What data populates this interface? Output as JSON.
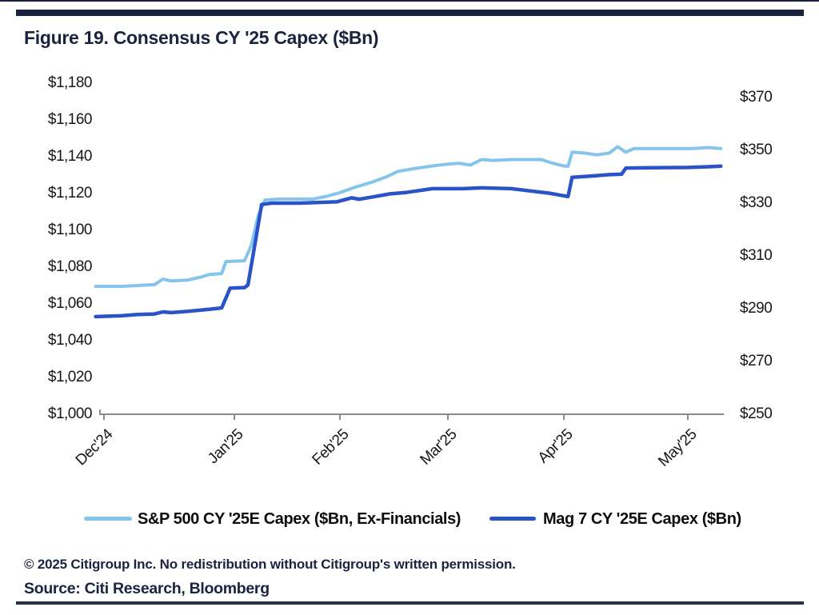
{
  "header": {
    "title": "Figure 19. Consensus CY '25 Capex ($Bn)"
  },
  "footer": {
    "copyright": "© 2025 Citigroup Inc. No redistribution without Citigroup's written permission.",
    "source": "Source: Citi Research, Bloomberg"
  },
  "colors": {
    "navy_accent": "#1b2340",
    "sp500_line": "#85c5ec",
    "mag7_line": "#2b53c8",
    "axis_line": "#8a8a8a"
  },
  "chart_data": {
    "type": "line",
    "title": "Figure 19. Consensus CY '25 Capex ($Bn)",
    "grid": false,
    "legend_position": "bottom",
    "x_axis": {
      "tick_labels": [
        "Dec'24",
        "Jan'25",
        "Feb'25",
        "Mar'25",
        "Apr'25",
        "May'25"
      ],
      "tick_dates": [
        "2024-12-01",
        "2025-01-01",
        "2025-02-01",
        "2025-03-01",
        "2025-04-01",
        "2025-05-01"
      ]
    },
    "left_axis": {
      "range": [
        1000,
        1180
      ],
      "tick_values": [
        1180,
        1160,
        1140,
        1120,
        1100,
        1080,
        1060,
        1040,
        1020,
        1000
      ],
      "tick_labels": [
        "$1,180",
        "$1,160",
        "$1,140",
        "$1,120",
        "$1,100",
        "$1,080",
        "$1,060",
        "$1,040",
        "$1,020",
        "$1,000"
      ]
    },
    "right_axis": {
      "range": [
        250,
        370
      ],
      "tick_values": [
        370,
        350,
        330,
        310,
        290,
        270,
        250
      ],
      "tick_labels": [
        "$370",
        "$350",
        "$330",
        "$310",
        "$290",
        "$270",
        "$250"
      ]
    },
    "series": [
      {
        "name": "S&P 500 CY '25E Capex ($Bn, Ex-Financials)",
        "axis": "left",
        "color": "#85c5ec",
        "points": [
          [
            "2024-11-29",
            1069.5
          ],
          [
            "2024-12-05",
            1069.5
          ],
          [
            "2024-12-09",
            1070
          ],
          [
            "2024-12-13",
            1070.5
          ],
          [
            "2024-12-15",
            1073.5
          ],
          [
            "2024-12-17",
            1072.5
          ],
          [
            "2024-12-21",
            1073
          ],
          [
            "2024-12-24",
            1074.5
          ],
          [
            "2024-12-26",
            1076
          ],
          [
            "2024-12-29",
            1076.5
          ],
          [
            "2024-12-30",
            1083
          ],
          [
            "2025-01-04",
            1083.5
          ],
          [
            "2025-01-06",
            1092
          ],
          [
            "2025-01-08",
            1108
          ],
          [
            "2025-01-10",
            1116.5
          ],
          [
            "2025-01-14",
            1117
          ],
          [
            "2025-01-24",
            1117
          ],
          [
            "2025-01-28",
            1118.5
          ],
          [
            "2025-02-01",
            1120.5
          ],
          [
            "2025-02-05",
            1123.5
          ],
          [
            "2025-02-09",
            1126
          ],
          [
            "2025-02-13",
            1129
          ],
          [
            "2025-02-16",
            1132
          ],
          [
            "2025-02-20",
            1133.5
          ],
          [
            "2025-02-25",
            1135
          ],
          [
            "2025-03-01",
            1136
          ],
          [
            "2025-03-04",
            1136.5
          ],
          [
            "2025-03-07",
            1135.5
          ],
          [
            "2025-03-10",
            1138.5
          ],
          [
            "2025-03-13",
            1138
          ],
          [
            "2025-03-18",
            1138.5
          ],
          [
            "2025-03-26",
            1138.5
          ],
          [
            "2025-03-29",
            1136.5
          ],
          [
            "2025-04-01",
            1135
          ],
          [
            "2025-04-02",
            1134.8
          ],
          [
            "2025-04-03",
            1142.5
          ],
          [
            "2025-04-06",
            1142
          ],
          [
            "2025-04-09",
            1141
          ],
          [
            "2025-04-12",
            1142
          ],
          [
            "2025-04-14",
            1145.5
          ],
          [
            "2025-04-16",
            1142.5
          ],
          [
            "2025-04-18",
            1144.5
          ],
          [
            "2025-04-24",
            1144.5
          ],
          [
            "2025-05-02",
            1144.5
          ],
          [
            "2025-05-06",
            1145
          ],
          [
            "2025-05-09",
            1144.5
          ]
        ]
      },
      {
        "name": "Mag 7 CY '25E Capex ($Bn)",
        "axis": "right",
        "color": "#2b53c8",
        "points": [
          [
            "2024-11-29",
            287
          ],
          [
            "2024-12-05",
            287.3
          ],
          [
            "2024-12-09",
            287.8
          ],
          [
            "2024-12-13",
            288
          ],
          [
            "2024-12-15",
            288.8
          ],
          [
            "2024-12-17",
            288.5
          ],
          [
            "2024-12-21",
            289
          ],
          [
            "2024-12-26",
            289.8
          ],
          [
            "2024-12-29",
            290.3
          ],
          [
            "2024-12-31",
            297.8
          ],
          [
            "2025-01-04",
            298
          ],
          [
            "2025-01-05",
            299
          ],
          [
            "2025-01-07",
            314
          ],
          [
            "2025-01-09",
            329.5
          ],
          [
            "2025-01-12",
            330
          ],
          [
            "2025-01-20",
            330
          ],
          [
            "2025-01-31",
            330.5
          ],
          [
            "2025-02-04",
            332
          ],
          [
            "2025-02-06",
            331.5
          ],
          [
            "2025-02-10",
            332.5
          ],
          [
            "2025-02-14",
            333.5
          ],
          [
            "2025-02-18",
            334
          ],
          [
            "2025-02-25",
            335.5
          ],
          [
            "2025-03-05",
            335.5
          ],
          [
            "2025-03-10",
            335.8
          ],
          [
            "2025-03-18",
            335.5
          ],
          [
            "2025-03-22",
            334.8
          ],
          [
            "2025-03-28",
            333.8
          ],
          [
            "2025-04-01",
            332.8
          ],
          [
            "2025-04-02",
            332.5
          ],
          [
            "2025-04-03",
            339.8
          ],
          [
            "2025-04-08",
            340.3
          ],
          [
            "2025-04-12",
            340.8
          ],
          [
            "2025-04-15",
            341
          ],
          [
            "2025-04-16",
            343.3
          ],
          [
            "2025-04-22",
            343.4
          ],
          [
            "2025-05-01",
            343.5
          ],
          [
            "2025-05-06",
            343.8
          ],
          [
            "2025-05-09",
            344
          ]
        ]
      }
    ]
  }
}
